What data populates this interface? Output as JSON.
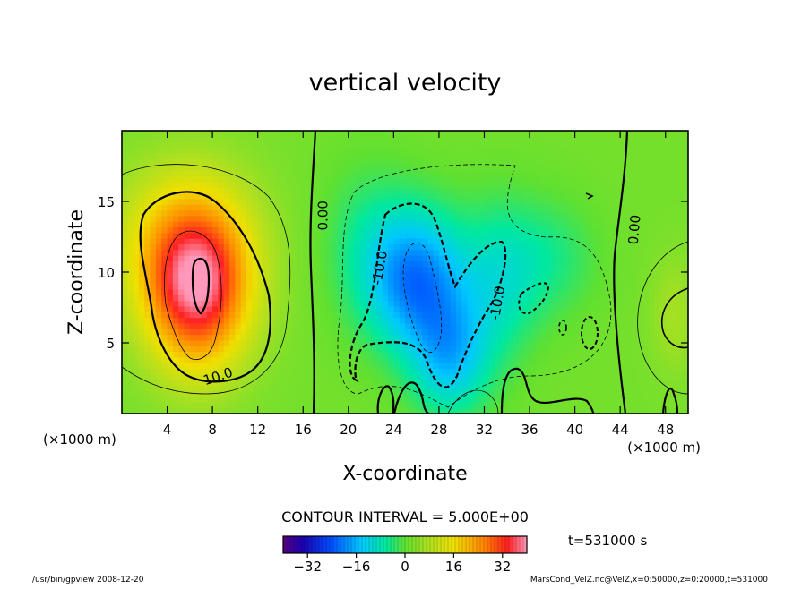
{
  "chart_data": {
    "type": "heatmap",
    "title": "vertical velocity",
    "xlabel": "X-coordinate",
    "ylabel": "Z-coordinate",
    "x_unit_left": "(×1000 m)",
    "x_unit_right": "(×1000 m)",
    "xlim": [
      0,
      50
    ],
    "ylim": [
      0,
      20
    ],
    "x_ticks": [
      4,
      8,
      12,
      16,
      20,
      24,
      28,
      32,
      36,
      40,
      44,
      48
    ],
    "y_ticks": [
      5,
      10,
      15
    ],
    "contour_interval_text": "CONTOUR INTERVAL = 5.000E+00",
    "time_text": "t=531000 s",
    "colorbar": {
      "range": [
        -40,
        40
      ],
      "ticks": [
        -32,
        -16,
        0,
        16,
        32
      ]
    },
    "contour_labels": [
      {
        "text": "0.00",
        "x": 17.8,
        "z": 14.0,
        "rotate": -90
      },
      {
        "text": "-10.0",
        "x": 22.8,
        "z": 10.3,
        "rotate": -80
      },
      {
        "text": "-10.0",
        "x": 33.2,
        "z": 7.8,
        "rotate": -80
      },
      {
        "text": "0.00",
        "x": 45.3,
        "z": 13.0,
        "rotate": -85
      },
      {
        "text": "10.0",
        "x": 8.5,
        "z": 2.6,
        "rotate": -18
      }
    ],
    "field_features": [
      {
        "x": 6.7,
        "z": 8.6,
        "value": 30,
        "sx": 3.2,
        "sz": 4.0
      },
      {
        "x": 5.5,
        "z": 12.0,
        "value": 14,
        "sx": 4.5,
        "sz": 4.0
      },
      {
        "x": 26.0,
        "z": 9.5,
        "value": -22,
        "sx": 3.2,
        "sz": 3.5
      },
      {
        "x": 29.0,
        "z": 4.0,
        "value": -15,
        "sx": 2.5,
        "sz": 3.0
      },
      {
        "x": 33.5,
        "z": 9.5,
        "value": -9,
        "sx": 2.5,
        "sz": 4.0
      },
      {
        "x": 38.0,
        "z": 11.0,
        "value": -6,
        "sx": 3.0,
        "sz": 3.0
      },
      {
        "x": 21.5,
        "z": 12.5,
        "value": -5,
        "sx": 3.0,
        "sz": 4.0
      },
      {
        "x": 48.8,
        "z": 7.0,
        "value": 5,
        "sx": 1.5,
        "sz": 3.0
      }
    ]
  },
  "footer": {
    "left": "/usr/bin/gpview   2008-12-20",
    "right": "MarsCond_VelZ.nc@VelZ,x=0:50000,z=0:20000,t=531000"
  }
}
